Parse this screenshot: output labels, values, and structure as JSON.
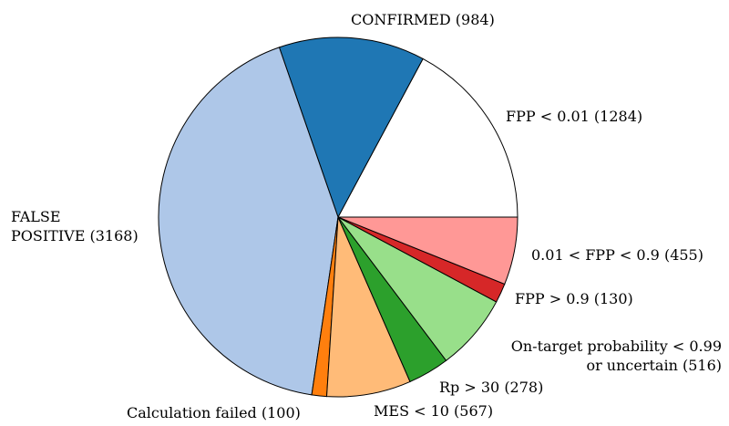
{
  "chart_data": {
    "type": "pie",
    "start_angle_deg": 0,
    "direction": "counterclockwise",
    "slices": [
      {
        "label": "FPP < 0.01 (1284)",
        "value": 1284,
        "color": "#ffffff"
      },
      {
        "label": "CONFIRMED (984)",
        "value": 984,
        "color": "#1f77b4"
      },
      {
        "label": "FALSE POSITIVE (3168)",
        "label_lines": [
          "FALSE",
          "POSITIVE (3168)"
        ],
        "value": 3168,
        "color": "#aec7e8"
      },
      {
        "label": "Calculation failed (100)",
        "value": 100,
        "color": "#ff7f0e"
      },
      {
        "label": "MES < 10 (567)",
        "value": 567,
        "color": "#ffbb78"
      },
      {
        "label": "Rp > 30 (278)",
        "value": 278,
        "color": "#2ca02c"
      },
      {
        "label": "On-target probability < 0.99 or uncertain (516)",
        "label_lines": [
          "On-target probability < 0.99",
          "or uncertain (516)"
        ],
        "value": 516,
        "color": "#98df8a"
      },
      {
        "label": "FPP > 0.9 (130)",
        "value": 130,
        "color": "#d62728"
      },
      {
        "label": "0.01 < FPP < 0.9 (455)",
        "value": 455,
        "color": "#ff9896"
      }
    ]
  }
}
